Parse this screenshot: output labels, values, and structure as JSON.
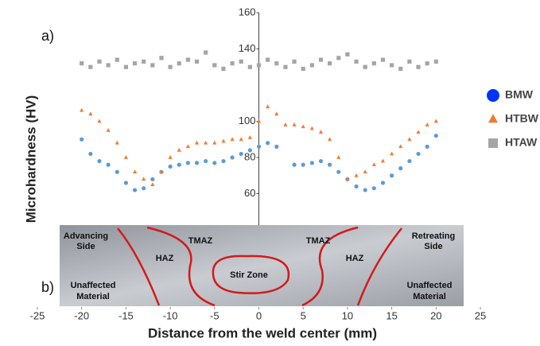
{
  "chart_data": {
    "type": "scatter",
    "xlabel": "Distance from the weld center (mm)",
    "ylabel": "Microhardness (HV)",
    "xlim": [
      -25,
      25
    ],
    "xticks": [
      -25,
      -20,
      -15,
      -10,
      -5,
      0,
      5,
      10,
      15,
      20,
      25
    ],
    "ylim": [
      0,
      160
    ],
    "yticks": [
      60,
      80,
      100,
      140,
      160
    ],
    "annotations": [
      "a)",
      "b)",
      "Advancing",
      "Side",
      "Retreating",
      "Side",
      "TMAZ",
      "TMAZ",
      "HAZ",
      "HAZ",
      "Stir Zone",
      "Unaffected",
      "Material",
      "Unaffected",
      "Material"
    ],
    "x": [
      -20,
      -19,
      -18,
      -17,
      -16,
      -15,
      -14,
      -13,
      -12,
      -11,
      -10,
      -9,
      -8,
      -7,
      -6,
      -5,
      -4,
      -3,
      -2,
      -1,
      0,
      1,
      2,
      3,
      4,
      5,
      6,
      7,
      8,
      9,
      10,
      11,
      12,
      13,
      14,
      15,
      16,
      17,
      18,
      19,
      20
    ],
    "series": [
      {
        "name": "BMW",
        "color": "#5b9bd5",
        "legend_color": "#0033ff",
        "marker": "circle",
        "values": [
          90,
          82,
          78,
          76,
          72,
          66,
          62,
          63,
          68,
          72,
          75,
          76,
          77,
          77,
          78,
          77,
          78,
          80,
          82,
          84,
          86,
          88,
          86,
          null,
          76,
          76,
          77,
          78,
          76,
          72,
          68,
          64,
          62,
          63,
          66,
          70,
          74,
          78,
          82,
          86,
          92
        ]
      },
      {
        "name": "HTBW",
        "color": "#ed7d31",
        "legend_color": "#ed7d31",
        "marker": "triangle",
        "values": [
          106,
          104,
          100,
          95,
          88,
          80,
          72,
          68,
          65,
          72,
          80,
          84,
          86,
          88,
          88,
          88,
          89,
          90,
          90,
          91,
          100,
          108,
          104,
          98,
          98,
          97,
          96,
          94,
          90,
          80,
          68,
          70,
          72,
          76,
          78,
          82,
          86,
          90,
          94,
          98,
          100
        ]
      },
      {
        "name": "HTAW",
        "color": "#a5a5a5",
        "legend_color": "#a5a5a5",
        "marker": "square",
        "values": [
          132,
          130,
          133,
          131,
          134,
          130,
          132,
          133,
          131,
          135,
          130,
          132,
          134,
          133,
          138,
          131,
          129,
          132,
          133,
          130,
          131,
          134,
          132,
          130,
          133,
          129,
          131,
          134,
          132,
          135,
          137,
          133,
          130,
          132,
          134,
          131,
          129,
          133,
          130,
          132,
          133
        ]
      }
    ]
  }
}
